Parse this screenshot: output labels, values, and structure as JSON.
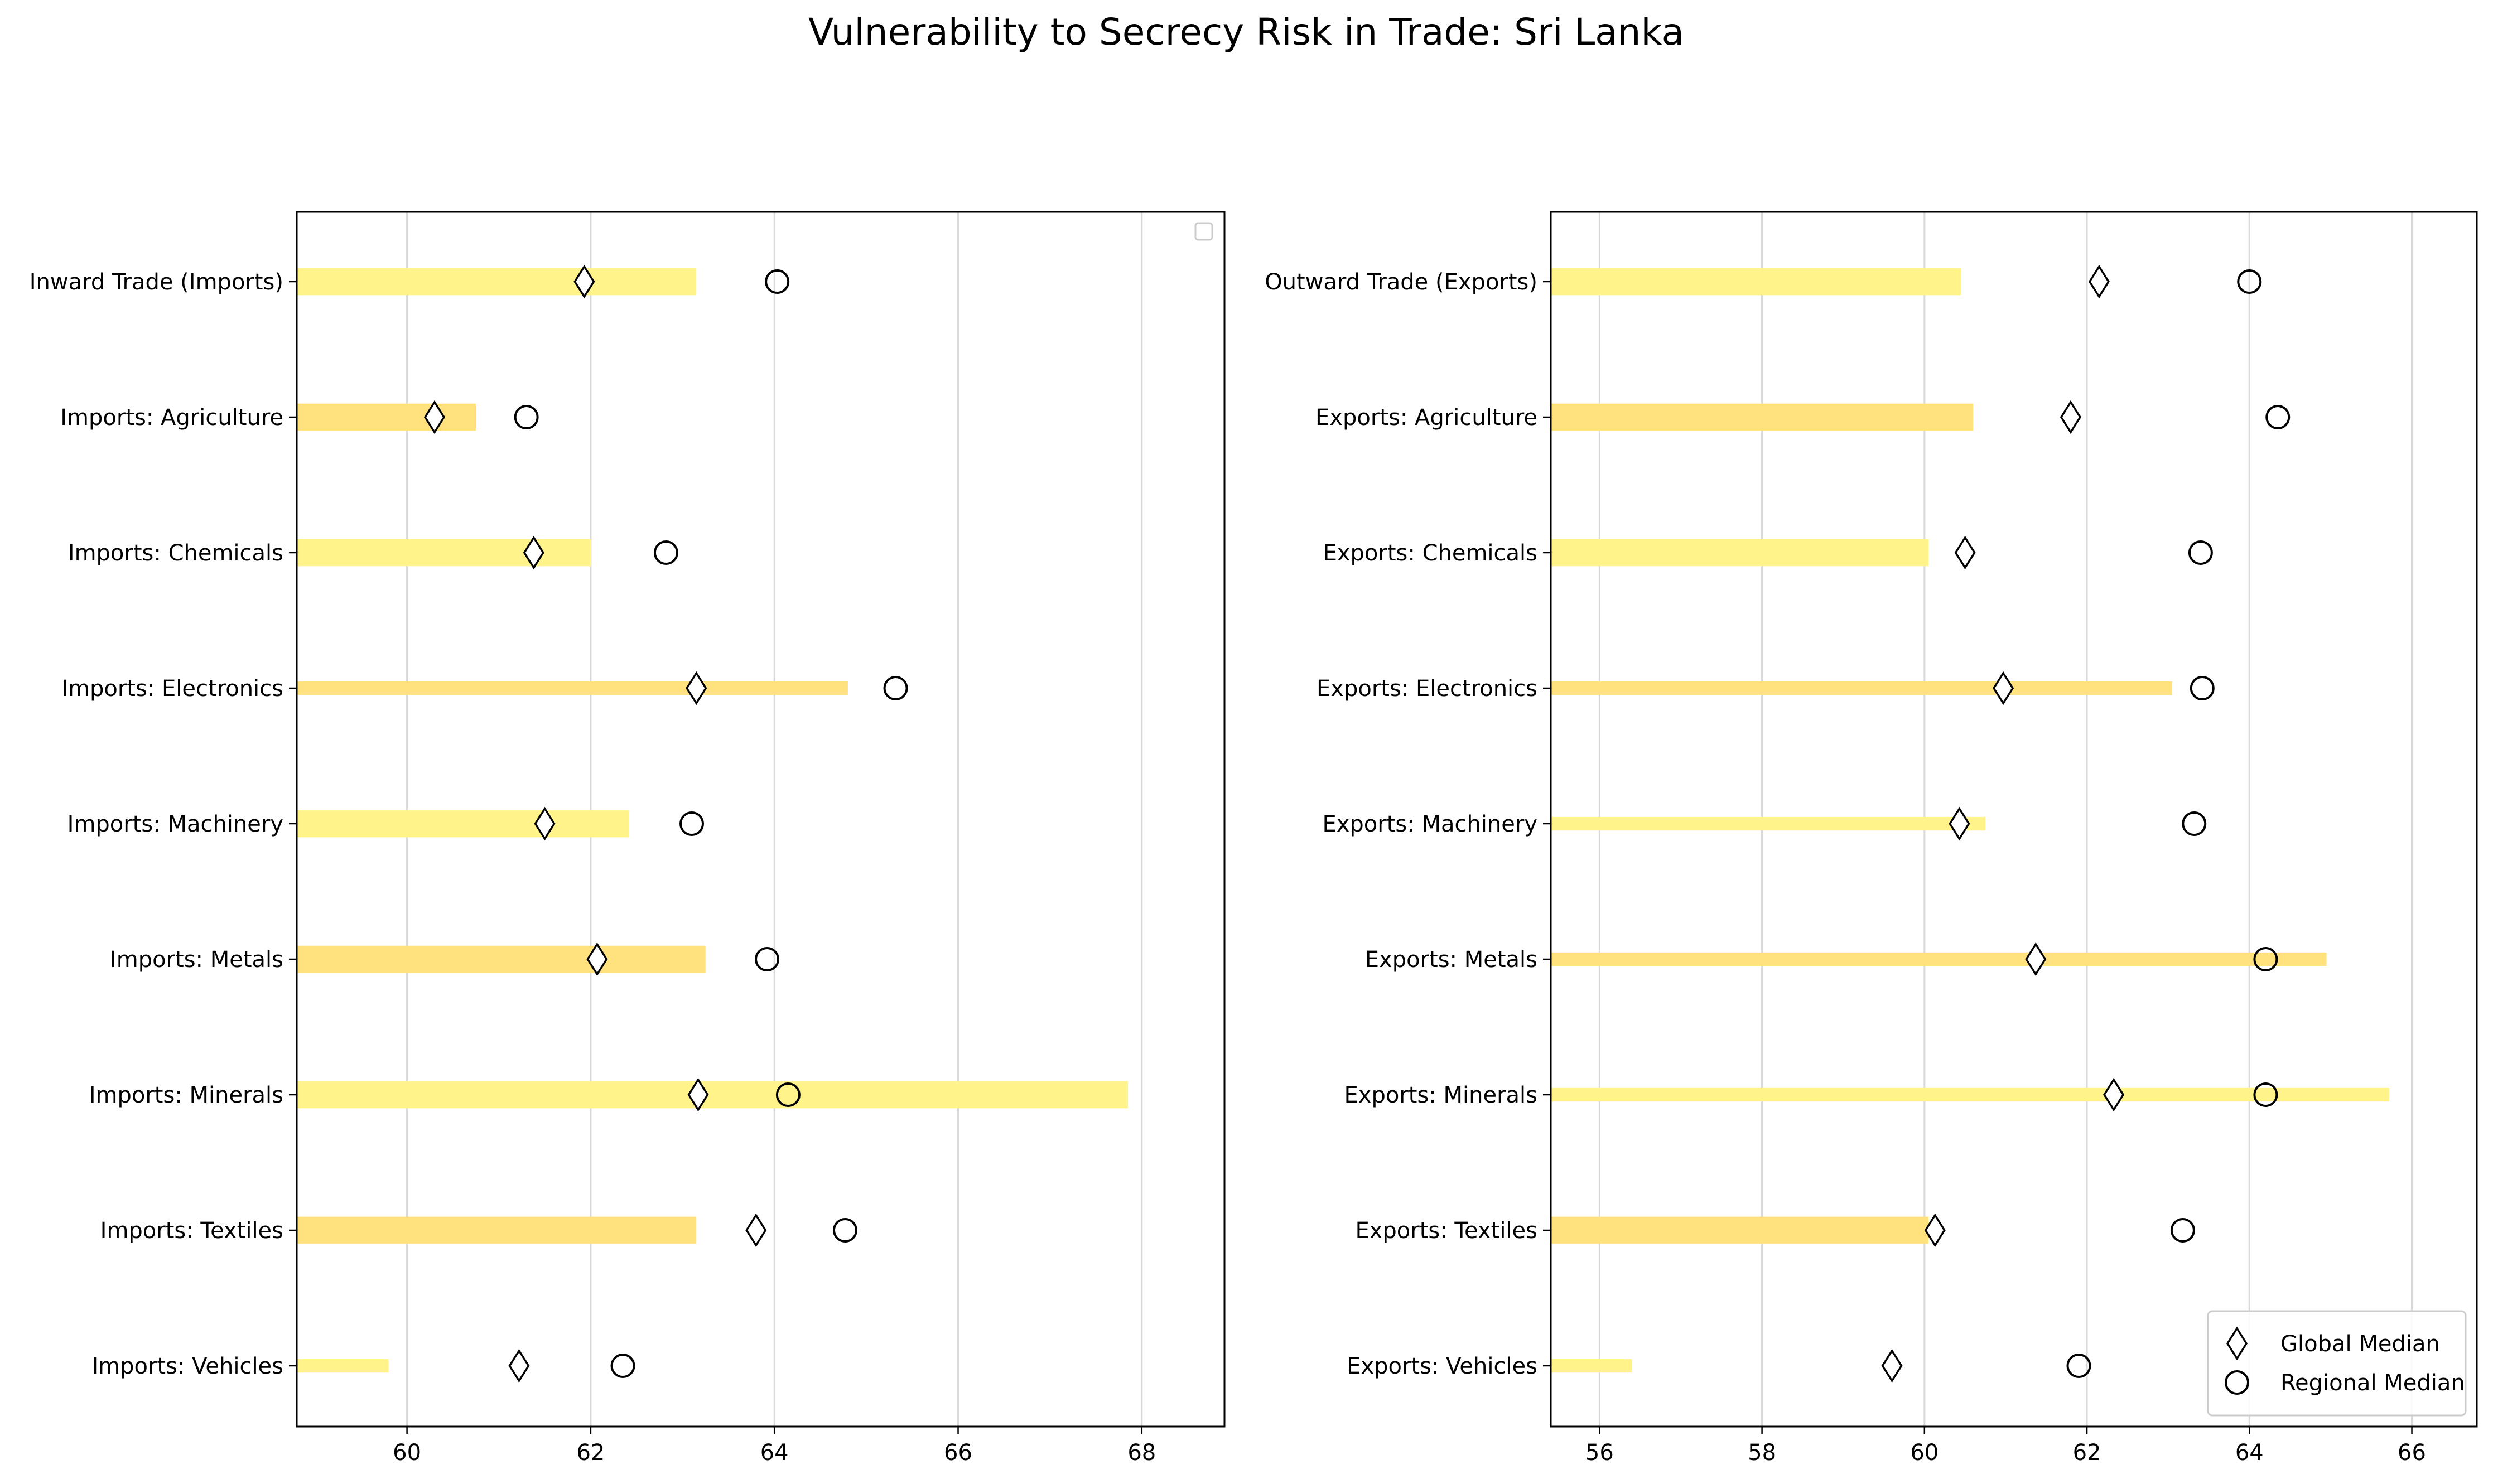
{
  "title": "Vulnerability to Secrecy Risk in Trade: Sri Lanka",
  "legend": {
    "global_label": "Global Median",
    "regional_label": "Regional Median",
    "placement": "lower-right"
  },
  "colors": {
    "bar_a": "#fff38a",
    "bar_b": "#ffe27e",
    "grid": "#d9d9d9",
    "marker_edge": "#000000",
    "marker_face": "#ffffff"
  },
  "chart_data": [
    {
      "type": "bar",
      "orientation": "horizontal",
      "categories": [
        "Inward Trade (Imports)",
        "Imports: Agriculture",
        "Imports: Chemicals",
        "Imports: Electronics",
        "Imports: Machinery",
        "Imports: Metals",
        "Imports: Minerals",
        "Imports: Textiles",
        "Imports: Vehicles"
      ],
      "values": [
        63.15,
        60.75,
        62.0,
        64.8,
        62.42,
        63.25,
        67.85,
        63.15,
        59.8
      ],
      "bar_thickness": [
        0.2,
        0.2,
        0.2,
        0.1,
        0.2,
        0.2,
        0.2,
        0.2,
        0.1
      ],
      "global_median": [
        61.93,
        60.3,
        61.38,
        63.15,
        61.5,
        62.07,
        63.17,
        63.8,
        61.22
      ],
      "regional_median": [
        64.03,
        61.3,
        62.82,
        65.32,
        63.1,
        63.92,
        64.15,
        64.77,
        62.35
      ],
      "xlim": [
        58.8,
        68.9
      ],
      "xticks": [
        60,
        62,
        64,
        66,
        68
      ],
      "grid": "x",
      "legend_empty": true
    },
    {
      "type": "bar",
      "orientation": "horizontal",
      "categories": [
        "Outward Trade (Exports)",
        "Exports: Agriculture",
        "Exports: Chemicals",
        "Exports: Electronics",
        "Exports: Machinery",
        "Exports: Metals",
        "Exports: Minerals",
        "Exports: Textiles",
        "Exports: Vehicles"
      ],
      "values": [
        60.45,
        60.6,
        60.05,
        63.05,
        60.75,
        64.95,
        65.72,
        60.05,
        56.4
      ],
      "bar_thickness": [
        0.2,
        0.2,
        0.2,
        0.1,
        0.1,
        0.1,
        0.1,
        0.2,
        0.1
      ],
      "global_median": [
        62.15,
        61.8,
        60.5,
        60.97,
        60.43,
        61.37,
        62.33,
        60.13,
        59.6
      ],
      "regional_median": [
        64.0,
        64.35,
        63.4,
        63.42,
        63.32,
        64.2,
        64.2,
        63.18,
        61.9
      ],
      "xlim": [
        55.4,
        66.8
      ],
      "xticks": [
        56,
        58,
        60,
        62,
        64,
        66
      ],
      "grid": "x",
      "legend_empty": false
    }
  ]
}
